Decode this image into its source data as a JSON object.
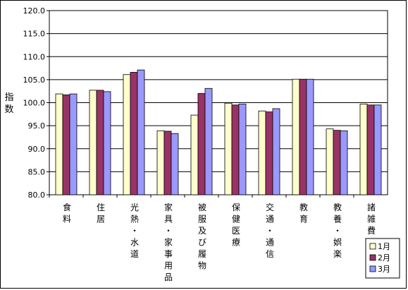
{
  "chart_data": {
    "type": "bar",
    "title": "",
    "ylabel": "指数",
    "xlabel": "",
    "ylim": [
      80,
      120
    ],
    "yticks": [
      "80.0",
      "85.0",
      "90.0",
      "95.0",
      "100.0",
      "105.0",
      "110.0",
      "115.0",
      "120.0"
    ],
    "grid": true,
    "legend_position": "bottom-right",
    "categories": [
      "食料",
      "住居",
      "光熱・水道",
      "家具・家事用品",
      "被服及び履物",
      "保健医療",
      "交通・通信",
      "教育",
      "教養・娯楽",
      "諸雑費"
    ],
    "series": [
      {
        "name": "1月",
        "color": "#ffffcc",
        "values": [
          101.9,
          102.7,
          106.1,
          93.9,
          97.3,
          99.9,
          98.2,
          105.1,
          94.3,
          99.7
        ]
      },
      {
        "name": "2月",
        "color": "#993366",
        "values": [
          101.7,
          102.7,
          106.6,
          93.8,
          102.0,
          99.5,
          98.0,
          105.1,
          94.0,
          99.5
        ]
      },
      {
        "name": "3月",
        "color": "#9999ff",
        "values": [
          101.9,
          102.4,
          107.1,
          93.3,
          103.1,
          99.7,
          98.7,
          105.1,
          93.9,
          99.5
        ]
      }
    ]
  }
}
